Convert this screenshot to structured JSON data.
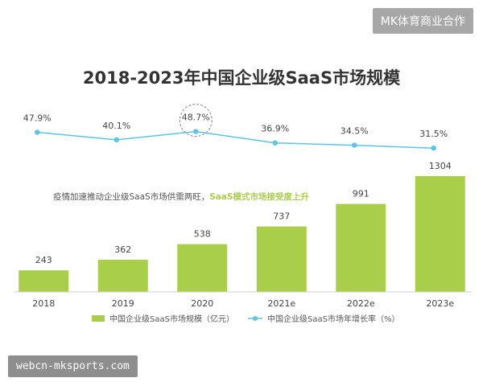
{
  "badge": "MK体育商业合作",
  "watermark": "webcn-mksports.com",
  "chart_data": {
    "type": "bar",
    "title": "2018-2023年中国企业级SaaS市场规模",
    "categories": [
      "2018",
      "2019",
      "2020",
      "2021e",
      "2022e",
      "2023e"
    ],
    "series": [
      {
        "name": "中国企业级SaaS市场规模（亿元）",
        "type": "bar",
        "values": [
          243,
          362,
          538,
          737,
          991,
          1304
        ],
        "labels": [
          "243",
          "362",
          "538",
          "737",
          "991",
          "1304"
        ],
        "color": "#a9cf4a"
      },
      {
        "name": "中国企业级SaaS市场年增长率（%）",
        "type": "line",
        "values": [
          47.9,
          40.1,
          48.7,
          36.9,
          34.5,
          31.5
        ],
        "labels": [
          "47.9%",
          "40.1%",
          "48.7%",
          "36.9%",
          "34.5%",
          "31.5%"
        ],
        "color": "#5bc5e6"
      }
    ],
    "annotation": {
      "text_plain": "疫情加速推动企业级SaaS市场供需两旺，",
      "text_highlight": "SaaS模式市场接受度上升"
    },
    "highlight_category": "2020",
    "bar_ylim": [
      0,
      1400
    ],
    "line_ylim": [
      20,
      60
    ],
    "legend": "bottom",
    "grid": false
  }
}
